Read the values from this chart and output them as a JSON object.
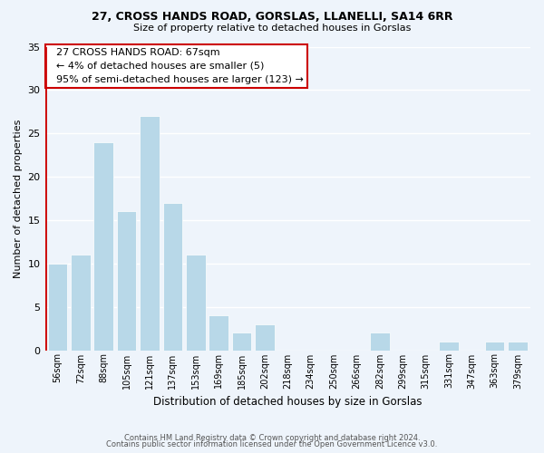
{
  "title_line1": "27, CROSS HANDS ROAD, GORSLAS, LLANELLI, SA14 6RR",
  "title_line2": "Size of property relative to detached houses in Gorslas",
  "xlabel": "Distribution of detached houses by size in Gorslas",
  "ylabel": "Number of detached properties",
  "bar_labels": [
    "56sqm",
    "72sqm",
    "88sqm",
    "105sqm",
    "121sqm",
    "137sqm",
    "153sqm",
    "169sqm",
    "185sqm",
    "202sqm",
    "218sqm",
    "234sqm",
    "250sqm",
    "266sqm",
    "282sqm",
    "299sqm",
    "315sqm",
    "331sqm",
    "347sqm",
    "363sqm",
    "379sqm"
  ],
  "bar_values": [
    10,
    11,
    24,
    16,
    27,
    17,
    11,
    4,
    2,
    3,
    0,
    0,
    0,
    0,
    2,
    0,
    0,
    1,
    0,
    1,
    1
  ],
  "bar_color": "#b8d8e8",
  "highlight_color": "#cc0000",
  "annotation_title": "27 CROSS HANDS ROAD: 67sqm",
  "annotation_line2": "← 4% of detached houses are smaller (5)",
  "annotation_line3": "95% of semi-detached houses are larger (123) →",
  "annotation_box_facecolor": "#ffffff",
  "annotation_border_color": "#cc0000",
  "ylim": [
    0,
    35
  ],
  "yticks": [
    0,
    5,
    10,
    15,
    20,
    25,
    30,
    35
  ],
  "footer_line1": "Contains HM Land Registry data © Crown copyright and database right 2024.",
  "footer_line2": "Contains public sector information licensed under the Open Government Licence v3.0.",
  "background_color": "#eef4fb"
}
